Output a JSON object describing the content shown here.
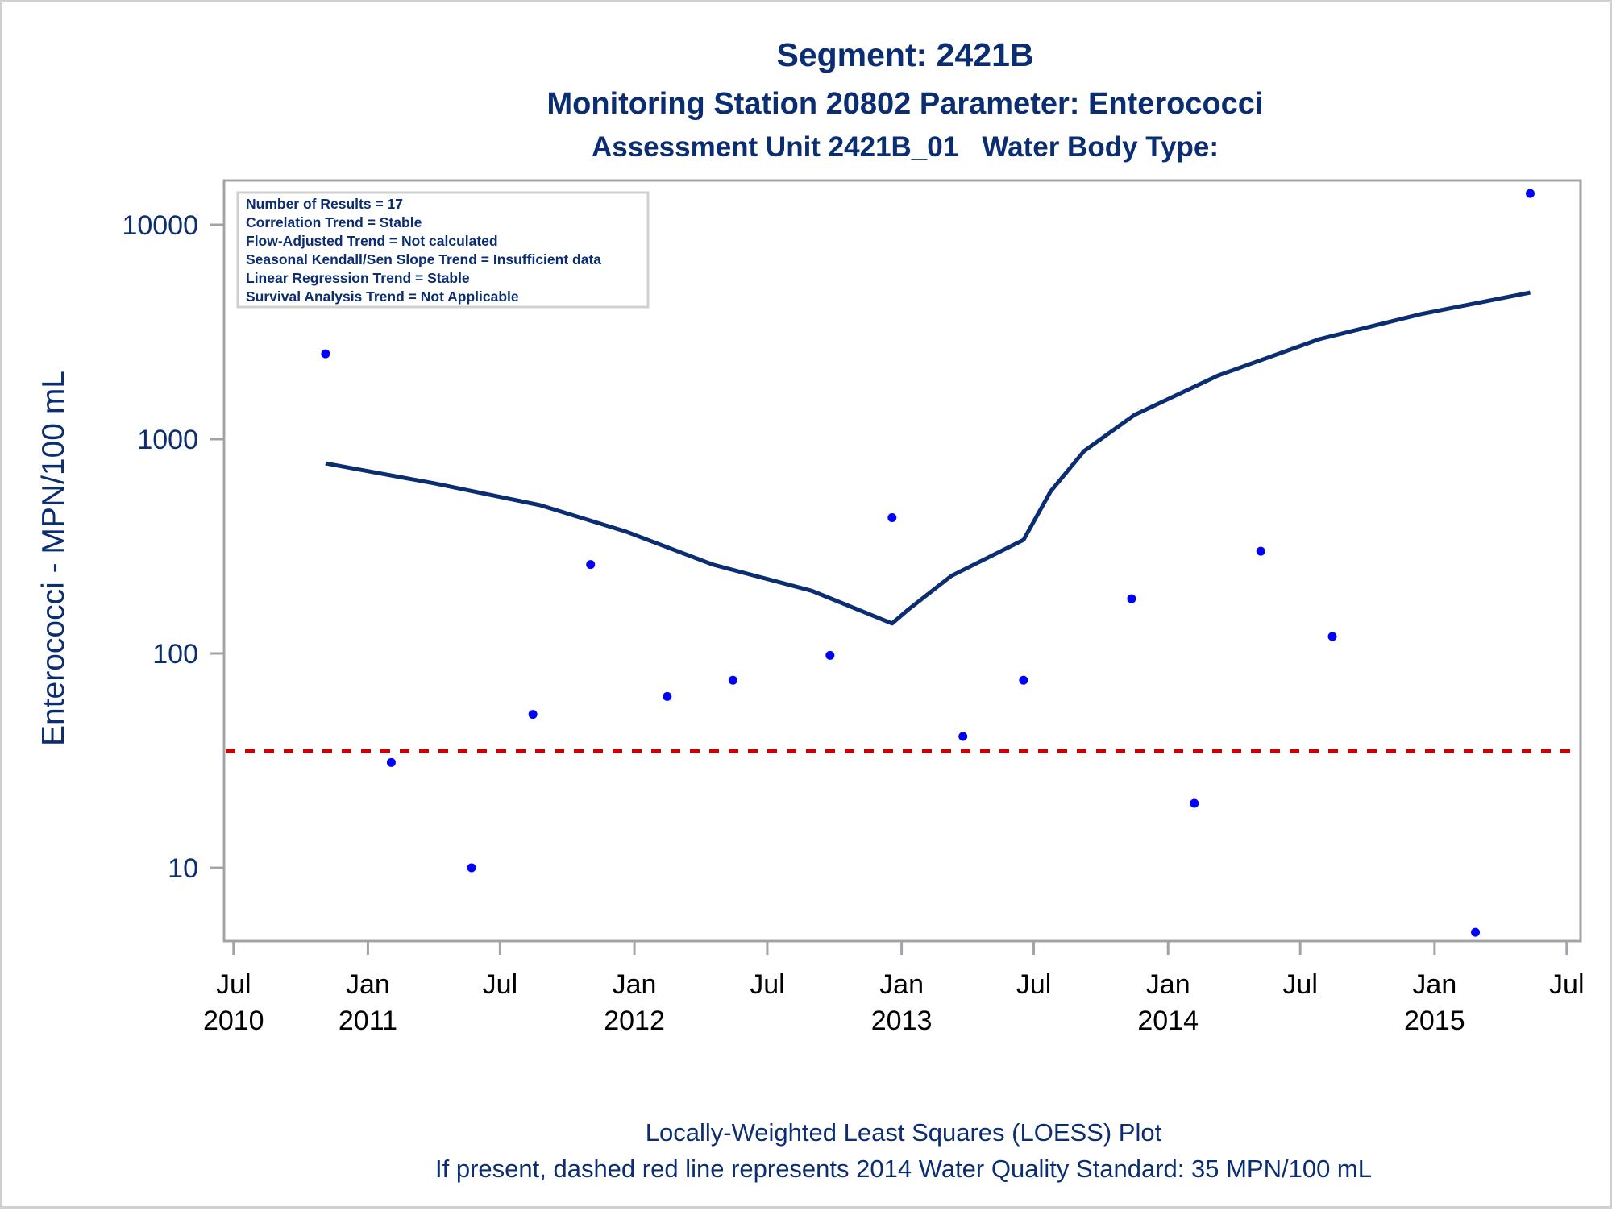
{
  "chart_data": {
    "type": "scatter",
    "title": "Segment: 2421B",
    "subtitle": "Monitoring Station 20802 Parameter: Enterococci",
    "subtitle2": "Assessment Unit 2421B_01   Water Body Type:",
    "xlabel": "",
    "ylabel": "Enterococci - MPN/100 mL",
    "yscale": "log",
    "ylim": [
      4.55,
      16100
    ],
    "xlim": [
      "2010-06-18",
      "2015-07-20"
    ],
    "grid": false,
    "y_ticks": [
      {
        "value": 10,
        "label": "10"
      },
      {
        "value": 100,
        "label": "100"
      },
      {
        "value": 1000,
        "label": "1000"
      },
      {
        "value": 10000,
        "label": "10000"
      }
    ],
    "x_ticks": [
      {
        "date": "2010-07-01",
        "month": "Jul",
        "year": "2010"
      },
      {
        "date": "2011-01-01",
        "month": "Jan",
        "year": "2011"
      },
      {
        "date": "2011-07-01",
        "month": "Jul",
        "year": ""
      },
      {
        "date": "2012-01-01",
        "month": "Jan",
        "year": "2012"
      },
      {
        "date": "2012-07-01",
        "month": "Jul",
        "year": ""
      },
      {
        "date": "2013-01-01",
        "month": "Jan",
        "year": "2013"
      },
      {
        "date": "2013-07-01",
        "month": "Jul",
        "year": ""
      },
      {
        "date": "2014-01-01",
        "month": "Jan",
        "year": "2014"
      },
      {
        "date": "2014-07-01",
        "month": "Jul",
        "year": ""
      },
      {
        "date": "2015-01-01",
        "month": "Jan",
        "year": "2015"
      },
      {
        "date": "2015-07-01",
        "month": "Jul",
        "year": ""
      }
    ],
    "series": [
      {
        "name": "Enterococci results",
        "type": "scatter",
        "color": "#0000ff",
        "points": [
          {
            "date": "2010-11-04",
            "value": 2500
          },
          {
            "date": "2011-02-02",
            "value": 31
          },
          {
            "date": "2011-05-23",
            "value": 10
          },
          {
            "date": "2011-08-15",
            "value": 52
          },
          {
            "date": "2011-11-02",
            "value": 260
          },
          {
            "date": "2012-02-15",
            "value": 63
          },
          {
            "date": "2012-05-15",
            "value": 75
          },
          {
            "date": "2012-09-25",
            "value": 98
          },
          {
            "date": "2012-12-19",
            "value": 430
          },
          {
            "date": "2013-03-26",
            "value": 41
          },
          {
            "date": "2013-06-17",
            "value": 75
          },
          {
            "date": "2013-11-12",
            "value": 180
          },
          {
            "date": "2014-02-06",
            "value": 20
          },
          {
            "date": "2014-05-08",
            "value": 300
          },
          {
            "date": "2014-08-14",
            "value": 120
          },
          {
            "date": "2015-02-26",
            "value": 5
          },
          {
            "date": "2015-05-12",
            "value": 14000
          }
        ]
      },
      {
        "name": "LOESS fit",
        "type": "line",
        "color": "#0b2d72",
        "points": [
          {
            "date": "2010-11-04",
            "value": 771
          },
          {
            "date": "2011-04-03",
            "value": 621
          },
          {
            "date": "2011-08-25",
            "value": 492
          },
          {
            "date": "2011-12-21",
            "value": 370
          },
          {
            "date": "2012-04-17",
            "value": 260
          },
          {
            "date": "2012-08-31",
            "value": 196
          },
          {
            "date": "2012-12-19",
            "value": 138
          },
          {
            "date": "2013-01-10",
            "value": 160
          },
          {
            "date": "2013-03-10",
            "value": 230
          },
          {
            "date": "2013-06-17",
            "value": 339
          },
          {
            "date": "2013-07-24",
            "value": 570
          },
          {
            "date": "2013-09-08",
            "value": 880
          },
          {
            "date": "2013-11-16",
            "value": 1297
          },
          {
            "date": "2014-03-11",
            "value": 1983
          },
          {
            "date": "2014-07-27",
            "value": 2925
          },
          {
            "date": "2014-12-13",
            "value": 3830
          },
          {
            "date": "2015-05-12",
            "value": 4830
          }
        ]
      }
    ],
    "reference_line": {
      "value": 35,
      "style": "dashed",
      "color": "#cc0000",
      "label": "2014 Water Quality Standard: 35 MPN/100 mL"
    },
    "annotations": {
      "stats_box": [
        "Number of Results = 17",
        "Correlation Trend = Stable",
        "Flow-Adjusted Trend = Not calculated",
        "Seasonal Kendall/Sen Slope Trend = Insufficient data",
        "Linear Regression Trend = Stable",
        "Survival Analysis Trend = Not Applicable"
      ],
      "stats_box_placement": "top-left"
    },
    "footnotes": [
      "Locally-Weighted Least Squares (LOESS) Plot",
      "If present, dashed red line represents 2014 Water Quality Standard: 35 MPN/100 mL"
    ]
  },
  "colors": {
    "title": "#0b2d72",
    "axis": "#a0a4a8",
    "points": "#0000ff",
    "loess": "#0b2d72",
    "reference": "#cc0000"
  }
}
